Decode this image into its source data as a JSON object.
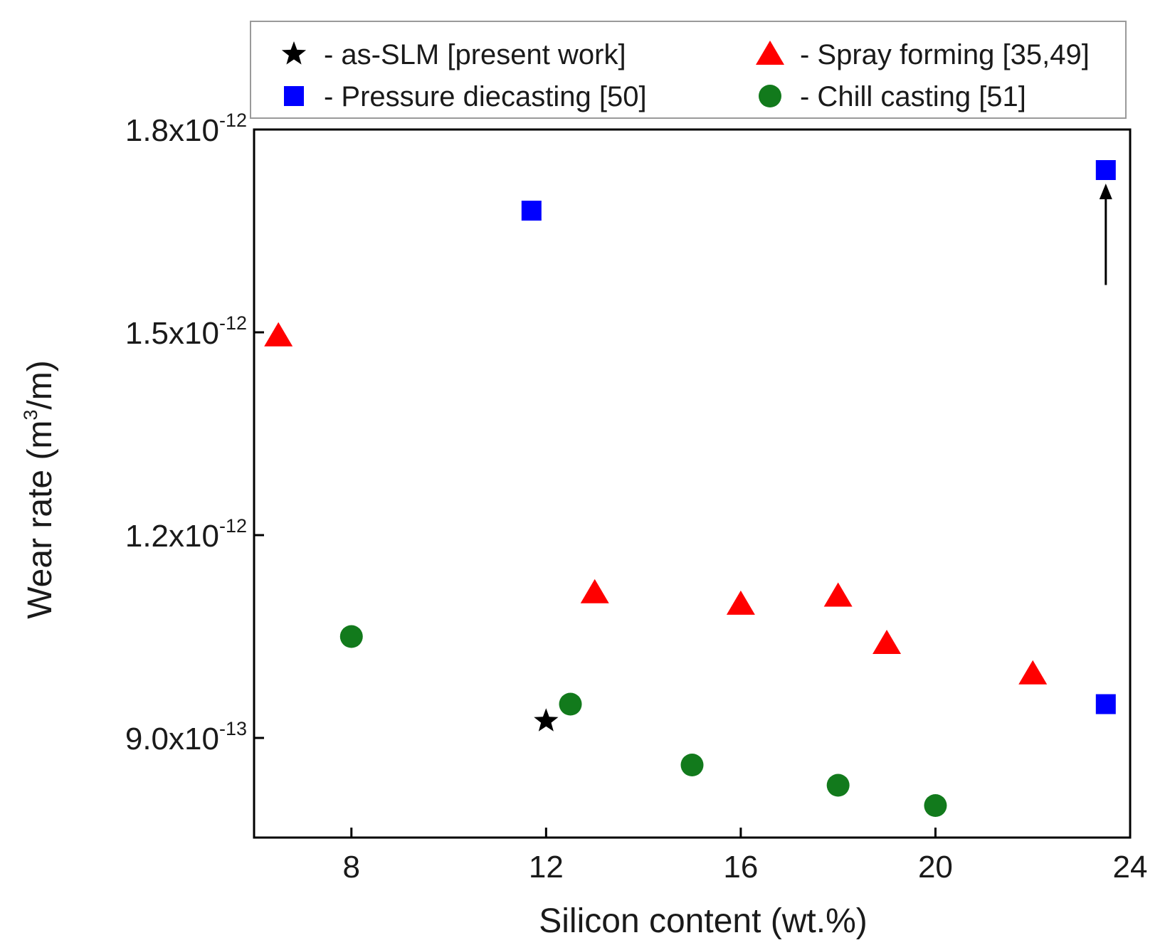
{
  "chart_data": {
    "type": "scatter",
    "xlabel": "Silicon content (wt.%)",
    "ylabel": {
      "base": "Wear rate (m",
      "sup": "3",
      "tail": "/m)"
    },
    "xlim": [
      6,
      24
    ],
    "ylim": [
      7.5e-13,
      1.8e-12
    ],
    "x_ticks": [
      {
        "value": 8,
        "label": "8"
      },
      {
        "value": 12,
        "label": "12"
      },
      {
        "value": 16,
        "label": "16"
      },
      {
        "value": 20,
        "label": "20"
      },
      {
        "value": 24,
        "label": "24"
      }
    ],
    "y_ticks": [
      {
        "value": 9e-13,
        "mantissa": "9.0x10",
        "exp": "-13"
      },
      {
        "value": 1.2e-12,
        "mantissa": "1.2x10",
        "exp": "-12"
      },
      {
        "value": 1.5e-12,
        "mantissa": "1.5x10",
        "exp": "-12"
      },
      {
        "value": 1.8e-12,
        "mantissa": "1.8x10",
        "exp": "-12"
      }
    ],
    "legend_position": "top",
    "grid": false,
    "series": [
      {
        "name": "- as-SLM [present work]",
        "marker": "star",
        "color": "#000000",
        "points": [
          [
            12.0,
            9.25e-13
          ]
        ]
      },
      {
        "name": "- Spray forming [35,49]",
        "marker": "triangle",
        "color": "#ff0000",
        "points": [
          [
            6.5,
            1.495e-12
          ],
          [
            13.0,
            1.115e-12
          ],
          [
            16.0,
            1.098e-12
          ],
          [
            18.0,
            1.11e-12
          ],
          [
            19.0,
            1.04e-12
          ],
          [
            22.0,
            9.95e-13
          ]
        ]
      },
      {
        "name": "- Pressure diecasting [50]",
        "marker": "square",
        "color": "#0000ff",
        "points": [
          [
            11.7,
            1.68e-12
          ],
          [
            23.5,
            1.74e-12
          ],
          [
            23.5,
            9.5e-13
          ]
        ]
      },
      {
        "name": "- Chill casting [51]",
        "marker": "circle",
        "color": "#127a1c",
        "points": [
          [
            8.0,
            1.05e-12
          ],
          [
            12.5,
            9.5e-13
          ],
          [
            15.0,
            8.6e-13
          ],
          [
            18.0,
            8.3e-13
          ],
          [
            20.0,
            8e-13
          ]
        ]
      }
    ],
    "annotations": [
      {
        "type": "arrow",
        "x": 23.5,
        "from_y": 1.57e-12,
        "to_y": 1.72e-12
      }
    ]
  }
}
